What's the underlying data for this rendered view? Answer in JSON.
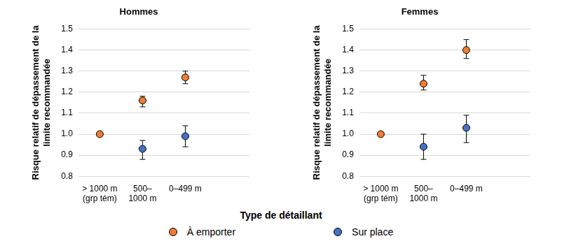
{
  "legend_title": "Type de détaillant",
  "chart_data": [
    {
      "type": "scatter",
      "title": "Hommes",
      "y_label": [
        "Risque relatif de dépassement de la",
        "limite recommandée"
      ],
      "categories": [
        [
          "> 1000 m",
          "(grp tém)"
        ],
        [
          "500–",
          "1000 m"
        ],
        "0–499 m",
        null
      ],
      "series": [
        {
          "name": "À emporter",
          "color": "#ED7D31",
          "marker": "circle",
          "values": [
            1.0,
            1.16,
            1.27,
            null
          ],
          "errors": [
            null,
            [
              1.13,
              1.18
            ],
            [
              1.24,
              1.3
            ],
            null
          ]
        },
        {
          "name": "Sur place",
          "color": "#4472C4",
          "marker": "circle",
          "values": [
            null,
            0.93,
            0.99,
            null
          ],
          "errors": [
            null,
            [
              0.88,
              0.97
            ],
            [
              0.94,
              1.04
            ],
            null
          ]
        }
      ],
      "ylim": [
        0.8,
        1.5
      ],
      "yticks": [
        0.8,
        0.9,
        {
          "value": 1,
          "label": "1.0"
        },
        1.1,
        1.2,
        1.3,
        1.4,
        1.5
      ],
      "grid": true,
      "legend": "bottom"
    },
    {
      "type": "scatter",
      "title": "Femmes",
      "y_label": [
        "Risque relatif de dépassement de la",
        "limite recommandée"
      ],
      "categories": [
        [
          "> 1000 m",
          "(grp tém)"
        ],
        [
          "500–",
          "1000 m"
        ],
        "0–499 m",
        null
      ],
      "series": [
        {
          "name": "À emporter",
          "color": "#ED7D31",
          "marker": "circle",
          "values": [
            1.0,
            1.24,
            1.4,
            null
          ],
          "errors": [
            null,
            [
              1.21,
              1.28
            ],
            [
              1.36,
              1.45
            ],
            null
          ]
        },
        {
          "name": "Sur place",
          "color": "#4472C4",
          "marker": "circle",
          "values": [
            null,
            0.94,
            1.03,
            null
          ],
          "errors": [
            null,
            [
              0.88,
              1.0
            ],
            [
              0.96,
              1.09
            ],
            null
          ]
        }
      ],
      "ylim": [
        0.8,
        1.5
      ],
      "yticks": [
        0.8,
        0.9,
        {
          "value": 1,
          "label": "1.0"
        },
        1.1,
        1.2,
        1.3,
        1.4,
        1.5
      ],
      "grid": true,
      "legend": "bottom"
    }
  ]
}
